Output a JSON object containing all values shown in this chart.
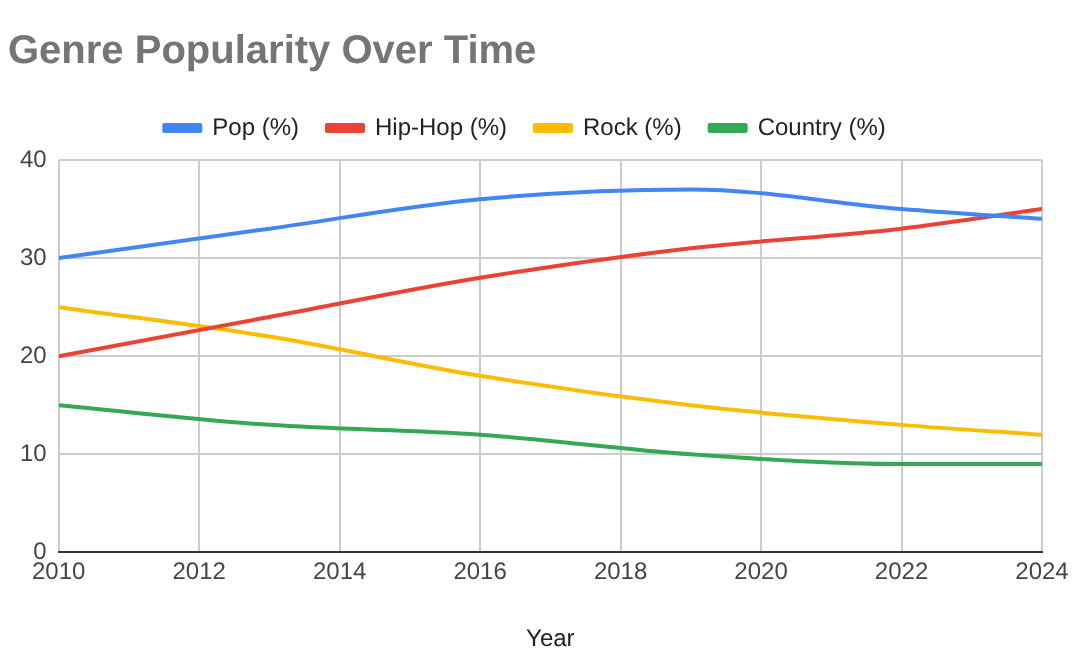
{
  "chart_data": {
    "type": "line",
    "title": "Genre Popularity Over Time",
    "xlabel": "Year",
    "x": [
      2010,
      2013,
      2016,
      2019,
      2022,
      2024
    ],
    "series": [
      {
        "name": "Pop (%)",
        "color": "#4285f4",
        "values": [
          30,
          33,
          36,
          37,
          35,
          34
        ]
      },
      {
        "name": "Hip-Hop (%)",
        "color": "#ea4335",
        "values": [
          20,
          24,
          28,
          31,
          33,
          35
        ]
      },
      {
        "name": "Rock (%)",
        "color": "#fbbc04",
        "values": [
          25,
          22,
          18,
          15,
          13,
          12
        ]
      },
      {
        "name": "Country (%)",
        "color": "#34a853",
        "values": [
          15,
          13,
          12,
          10,
          9,
          9
        ]
      }
    ],
    "xlim": [
      2010,
      2024
    ],
    "xticks": [
      2010,
      2012,
      2014,
      2016,
      2018,
      2020,
      2022,
      2024
    ],
    "ylim": [
      0,
      40
    ],
    "yticks": [
      0,
      10,
      20,
      30,
      40
    ],
    "grid": true,
    "legend": "top",
    "marker": "none",
    "line_style": "solid"
  }
}
